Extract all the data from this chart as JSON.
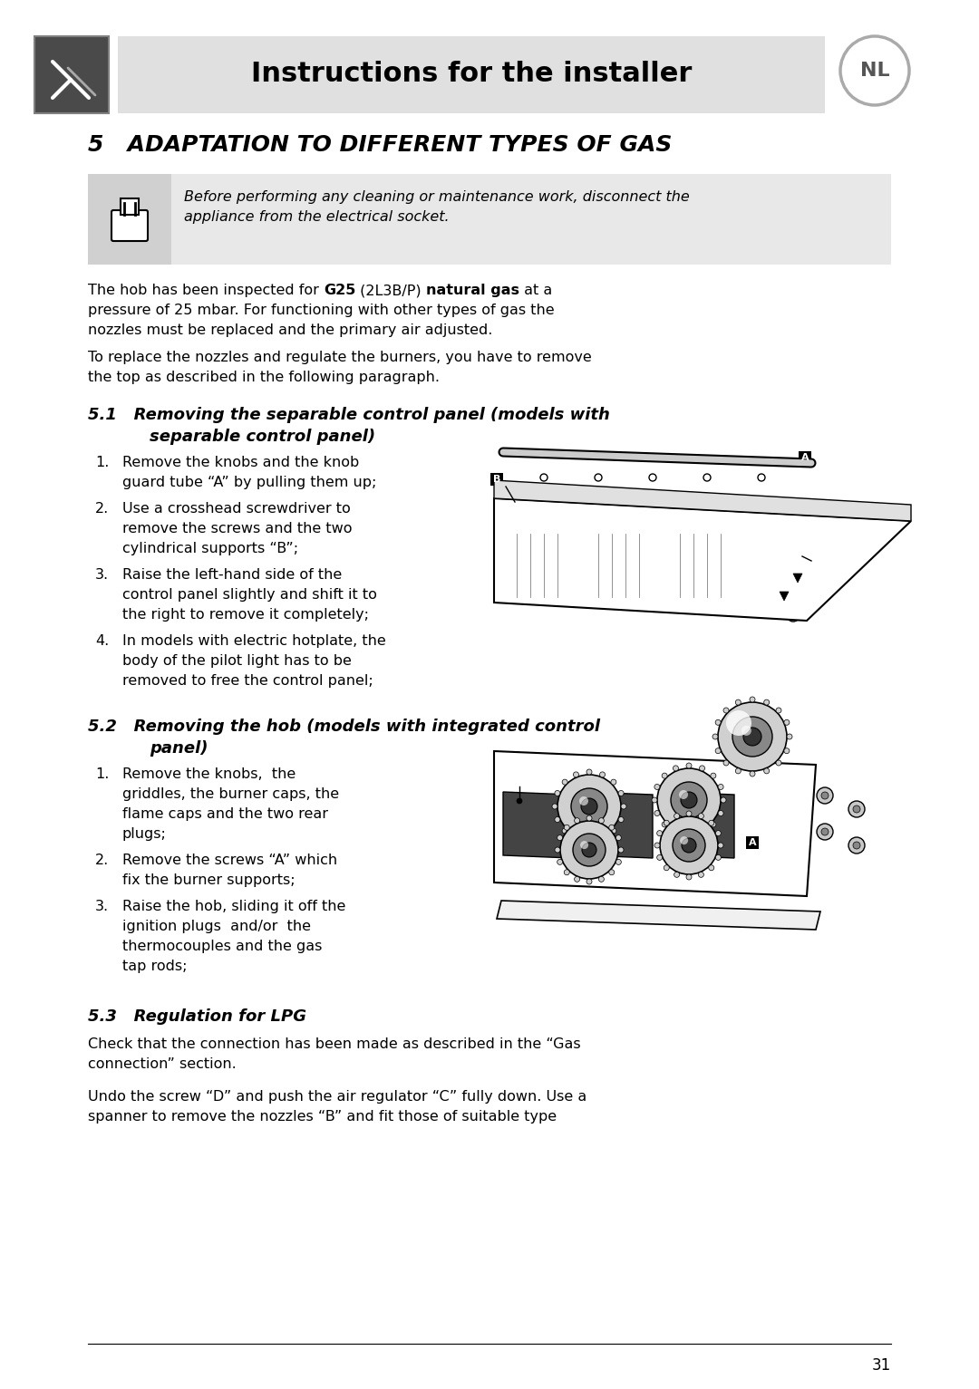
{
  "page_bg": "#ffffff",
  "header_bg": "#e0e0e0",
  "warning_bg": "#e8e8e8",
  "header_text": "Instructions for the installer",
  "nl_label": "NL",
  "section5_title": "5   ADAPTATION TO DIFFERENT TYPES OF GAS",
  "warn_line1": "Before performing any cleaning or maintenance work, disconnect the",
  "warn_line2": "appliance from the electrical socket.",
  "body1_pre": "The hob has been inspected for ",
  "body1_g25": "G25",
  "body1_mid": " (2L3B/P) ",
  "body1_ng": "natural gas",
  "body1_post": " at a",
  "body1_line2": "pressure of 25 mbar. For functioning with other types of gas the",
  "body1_line3": "nozzles must be replaced and the primary air adjusted.",
  "body2_line1": "To replace the nozzles and regulate the burners, you have to remove",
  "body2_line2": "the top as described in the following paragraph.",
  "s51_t1": "5.1   Removing the separable control panel (models with",
  "s51_t2": "separable control panel)",
  "s51_items": [
    [
      "Remove the knobs and the knob",
      "guard tube “A” by pulling them up;"
    ],
    [
      "Use a crosshead screwdriver to",
      "remove the screws and the two",
      "cylindrical supports “B”;"
    ],
    [
      "Raise the left-hand side of the",
      "control panel slightly and shift it to",
      "the right to remove it completely;"
    ],
    [
      "In models with electric hotplate, the",
      "body of the pilot light has to be",
      "removed to free the control panel;"
    ]
  ],
  "s52_t1": "5.2   Removing the hob (models with integrated control",
  "s52_t2": "panel)",
  "s52_items": [
    [
      "Remove the knobs,  the",
      "griddles, the burner caps, the",
      "flame caps and the two rear",
      "plugs;"
    ],
    [
      "Remove the screws “A” which",
      "fix the burner supports;"
    ],
    [
      "Raise the hob, sliding it off the",
      "ignition plugs  and/or  the",
      "thermocouples and the gas",
      "tap rods;"
    ]
  ],
  "s53_title": "5.3   Regulation for LPG",
  "s53_l1": "Check that the connection has been made as described in the “Gas",
  "s53_l2": "connection” section.",
  "s53_l3": "Undo the screw “D” and push the air regulator “C” fully down. Use a",
  "s53_l4": "spanner to remove the nozzles “B” and fit those of suitable type",
  "page_number": "31"
}
